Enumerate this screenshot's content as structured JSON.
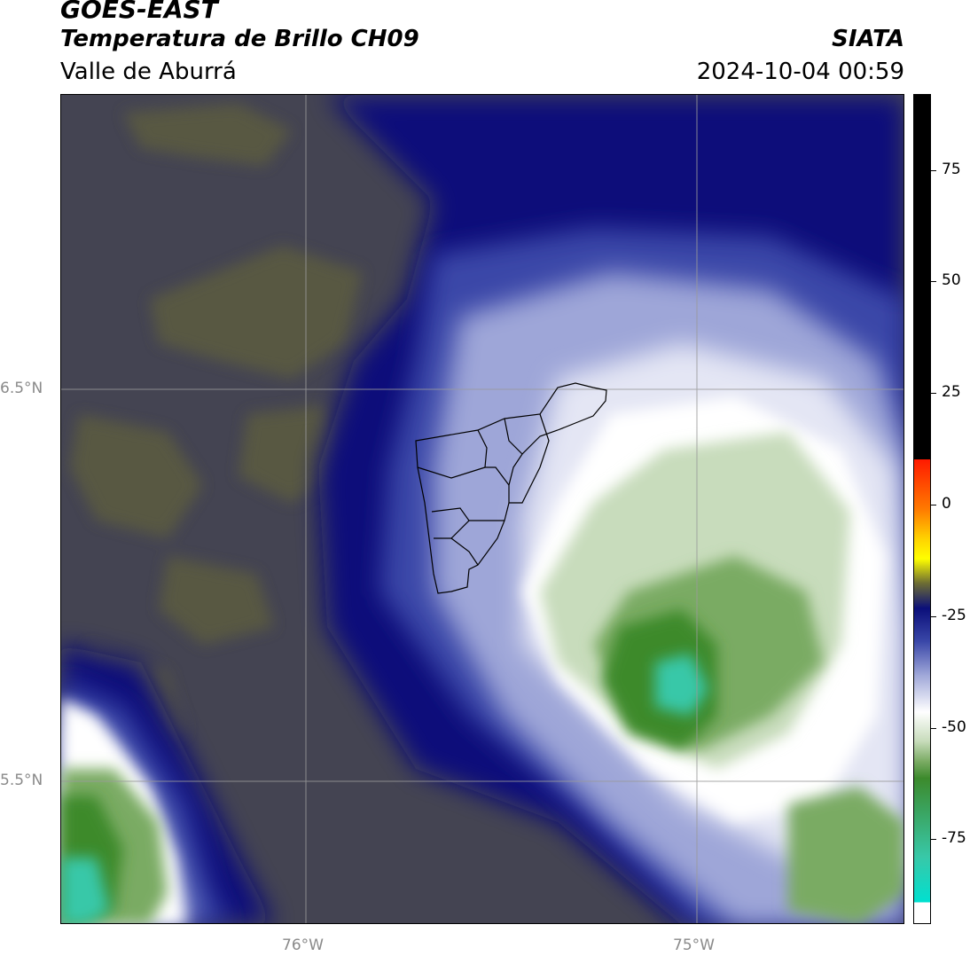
{
  "header": {
    "title_line1": "GOES-EAST",
    "title_line2": "Temperatura de Brillo CH09",
    "region": "Valle de Aburrá",
    "brand": "SIATA",
    "datetime": "2024-10-04 00:59"
  },
  "map": {
    "lat_labels": [
      "6.5°N",
      "5.5°N"
    ],
    "lon_labels": [
      "76°W",
      "75°W"
    ],
    "colors": {
      "warm_background": "#444452",
      "olive_patch": "#5b5c3f",
      "deep_blue": "#0b0f7a",
      "mid_blue": "#3a47a8",
      "lavender": "#9ea6d8",
      "pale": "#e4e6f4",
      "white": "#ffffff",
      "light_green": "#c8dcbc",
      "mid_green": "#7aab63",
      "dark_green": "#3c8a2c",
      "cyan": "#38c8a8",
      "boundary": "#000000",
      "grid": "#9a9a9a"
    }
  },
  "colorbar": {
    "ticks": [
      "75",
      "50",
      "25",
      "0",
      "-25",
      "-50",
      "-75"
    ],
    "tick_values": [
      75,
      50,
      25,
      0,
      -25,
      -50,
      -75
    ],
    "range": [
      -94,
      92
    ]
  }
}
